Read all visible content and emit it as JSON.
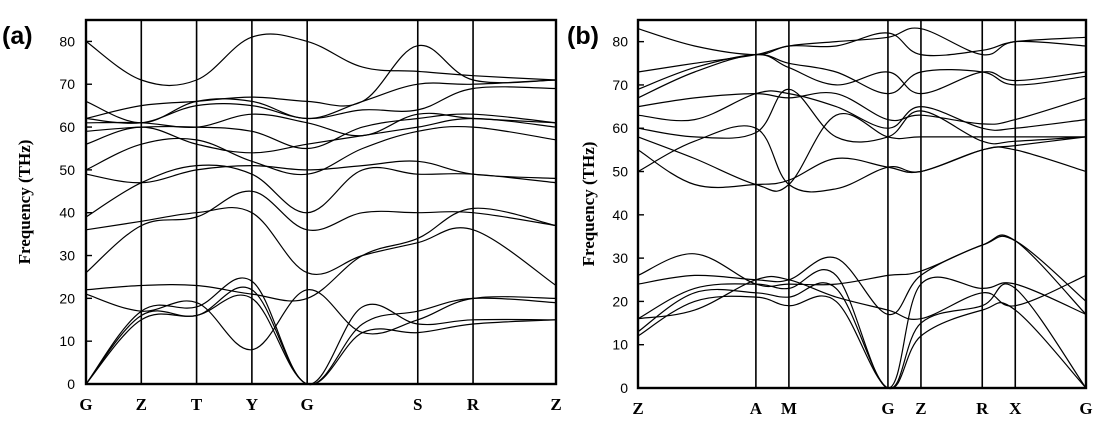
{
  "chart_data": [
    {
      "type": "line",
      "panel_label": "(a)",
      "ylabel": "Frequency (THz)",
      "ylim": [
        0,
        85
      ],
      "y_ticks": [
        "0",
        "10",
        "20",
        "30",
        "40",
        "50",
        "60",
        "70",
        "80"
      ],
      "x_labels": [
        "G",
        "Z",
        "T",
        "Y",
        "G",
        "S",
        "R",
        "Z"
      ],
      "x_positions": [
        0,
        1,
        2,
        3,
        4,
        6,
        7,
        8.5
      ],
      "reference_line": {
        "y": 0,
        "style": "dashed"
      },
      "series": [
        {
          "x": [
            0,
            1,
            2,
            3,
            4,
            5,
            6,
            7,
            8.5
          ],
          "values": [
            0,
            15,
            16,
            20,
            0,
            12,
            12,
            14,
            15
          ]
        },
        {
          "x": [
            0,
            1,
            2,
            3,
            4,
            5,
            6,
            7,
            8.5
          ],
          "values": [
            0,
            16,
            16,
            22,
            0,
            14,
            17,
            20,
            19
          ]
        },
        {
          "x": [
            0,
            1,
            2,
            3,
            4,
            5,
            6,
            7,
            8.5
          ],
          "values": [
            0,
            17,
            18,
            24,
            0,
            18,
            14,
            15,
            15
          ]
        },
        {
          "x": [
            0,
            1,
            2,
            3,
            4,
            5,
            6,
            7,
            8.5
          ],
          "values": [
            21,
            17,
            19,
            8,
            22,
            12,
            15,
            20,
            20
          ]
        },
        {
          "x": [
            0,
            1,
            2,
            3,
            4,
            5,
            6,
            7,
            8.5
          ],
          "values": [
            22,
            23,
            23,
            21,
            20,
            30,
            34,
            41,
            37
          ]
        },
        {
          "x": [
            0,
            1,
            2,
            3,
            4,
            5,
            6,
            7,
            8.5
          ],
          "values": [
            26,
            37,
            39,
            45,
            36,
            40,
            40,
            40,
            37
          ]
        },
        {
          "x": [
            0,
            1,
            2,
            3,
            4,
            5,
            6,
            7,
            8.5
          ],
          "values": [
            36,
            38,
            40,
            40,
            26,
            30,
            33,
            36,
            23
          ]
        },
        {
          "x": [
            0,
            1,
            2,
            3,
            4,
            5,
            6,
            7,
            8.5
          ],
          "values": [
            39,
            47,
            51,
            49,
            40,
            50,
            49,
            49,
            47
          ]
        },
        {
          "x": [
            0,
            1,
            2,
            3,
            4,
            5,
            6,
            7,
            8.5
          ],
          "values": [
            49,
            47,
            50,
            51,
            50,
            51,
            52,
            49,
            48
          ]
        },
        {
          "x": [
            0,
            1,
            2,
            3,
            4,
            5,
            6,
            7,
            8.5
          ],
          "values": [
            50,
            56,
            57,
            52,
            49,
            55,
            59,
            60,
            57
          ]
        },
        {
          "x": [
            0,
            1,
            2,
            3,
            4,
            5,
            6,
            7,
            8.5
          ],
          "values": [
            56,
            60,
            56,
            54,
            56,
            58,
            60,
            62,
            60
          ]
        },
        {
          "x": [
            0,
            1,
            2,
            3,
            4,
            5,
            6,
            7,
            8.5
          ],
          "values": [
            59,
            60,
            60,
            59,
            55,
            60,
            62,
            63,
            61
          ]
        },
        {
          "x": [
            0,
            1,
            2,
            3,
            4,
            5,
            6,
            7,
            8.5
          ],
          "values": [
            61,
            61,
            60,
            63,
            61,
            58,
            63,
            62,
            61
          ]
        },
        {
          "x": [
            0,
            1,
            2,
            3,
            4,
            5,
            6,
            7,
            8.5
          ],
          "values": [
            62,
            61,
            65,
            65,
            62,
            64,
            64,
            69,
            69
          ]
        },
        {
          "x": [
            0,
            1,
            2,
            3,
            4,
            5,
            6,
            7,
            8.5
          ],
          "values": [
            66,
            61,
            66,
            66,
            62,
            66,
            70,
            70,
            71
          ]
        },
        {
          "x": [
            0,
            1,
            2,
            3,
            4,
            5,
            6,
            7,
            8.5
          ],
          "values": [
            80,
            71,
            71,
            81,
            80,
            74,
            73,
            72,
            71
          ]
        },
        {
          "x": [
            0,
            1,
            2,
            3,
            4,
            5,
            6,
            7,
            8.5
          ],
          "values": [
            62,
            65,
            66,
            67,
            66,
            66,
            79,
            71,
            71
          ]
        }
      ]
    },
    {
      "type": "line",
      "panel_label": "(b)",
      "ylabel": "Frequency (THz)",
      "ylim": [
        0,
        85
      ],
      "y_ticks": [
        "0",
        "10",
        "20",
        "30",
        "40",
        "50",
        "60",
        "70",
        "80"
      ],
      "x_labels": [
        "Z",
        "A",
        "M",
        "G",
        "Z",
        "R",
        "X",
        "G"
      ],
      "x_positions": [
        0,
        2.5,
        3.2,
        5.3,
        6.0,
        7.3,
        8.0,
        9.5
      ],
      "reference_line": {
        "y": 0,
        "style": "dashed"
      },
      "series": [
        {
          "x": [
            0,
            1.2,
            2.5,
            3.2,
            4.2,
            5.3,
            6.0,
            7.3,
            8.0,
            9.5
          ],
          "values": [
            12,
            20,
            21,
            19,
            20,
            0,
            12,
            18,
            18,
            0
          ]
        },
        {
          "x": [
            0,
            1.2,
            2.5,
            3.2,
            4.2,
            5.3,
            6.0,
            7.3,
            8.0,
            9.5
          ],
          "values": [
            13,
            22,
            22,
            21,
            23,
            0,
            15,
            19,
            23,
            0
          ]
        },
        {
          "x": [
            0,
            1.2,
            2.5,
            3.2,
            4.2,
            5.3,
            6.0,
            7.3,
            8.0,
            9.5
          ],
          "values": [
            16,
            23,
            24,
            23,
            26,
            0,
            24,
            23,
            24,
            17
          ]
        },
        {
          "x": [
            0,
            1.2,
            2.5,
            3.2,
            4.2,
            5.3,
            6.0,
            7.3,
            8.0,
            9.5
          ],
          "values": [
            16,
            18,
            25,
            25,
            21,
            18,
            16,
            22,
            19,
            26
          ]
        },
        {
          "x": [
            0,
            1.2,
            2.5,
            3.2,
            4.2,
            5.3,
            6.0,
            7.3,
            8.0,
            9.5
          ],
          "values": [
            24,
            26,
            25,
            25,
            30,
            17,
            26,
            33,
            34,
            17
          ]
        },
        {
          "x": [
            0,
            1.2,
            2.5,
            3.2,
            4.2,
            5.3,
            6.0,
            7.3,
            8.0,
            9.5
          ],
          "values": [
            26,
            31,
            24,
            24,
            24,
            26,
            27,
            33,
            34,
            20
          ]
        },
        {
          "x": [
            0,
            1.2,
            2.5,
            3.2,
            4.2,
            5.3,
            6.0,
            7.3,
            8.0,
            9.5
          ],
          "values": [
            50,
            57,
            60,
            47,
            46,
            51,
            50,
            55,
            55,
            50
          ]
        },
        {
          "x": [
            0,
            1.2,
            2.5,
            3.2,
            4.2,
            5.3,
            6.0,
            7.3,
            8.0,
            9.5
          ],
          "values": [
            55,
            47,
            47,
            48,
            53,
            51,
            50,
            55,
            56,
            58
          ]
        },
        {
          "x": [
            0,
            1.2,
            2.5,
            3.2,
            4.2,
            5.3,
            6.0,
            7.3,
            8.0,
            9.5
          ],
          "values": [
            58,
            53,
            47,
            47,
            63,
            58,
            58,
            58,
            58,
            58
          ]
        },
        {
          "x": [
            0,
            1.2,
            2.5,
            3.2,
            4.2,
            5.3,
            6.0,
            7.3,
            8.0,
            9.5
          ],
          "values": [
            60,
            58,
            59,
            69,
            58,
            58,
            64,
            57,
            57,
            58
          ]
        },
        {
          "x": [
            0,
            1.2,
            2.5,
            3.2,
            4.2,
            5.3,
            6.0,
            7.3,
            8.0,
            9.5
          ],
          "values": [
            63,
            62,
            68,
            68,
            65,
            60,
            65,
            60,
            60,
            62
          ]
        },
        {
          "x": [
            0,
            1.2,
            2.5,
            3.2,
            4.2,
            5.3,
            6.0,
            7.3,
            8.0,
            9.5
          ],
          "values": [
            65,
            67,
            68,
            67,
            68,
            62,
            63,
            61,
            62,
            67
          ]
        },
        {
          "x": [
            0,
            1.2,
            2.5,
            3.2,
            4.2,
            5.3,
            6.0,
            7.3,
            8.0,
            9.5
          ],
          "values": [
            67,
            73,
            77,
            74,
            70,
            73,
            68,
            73,
            71,
            73
          ]
        },
        {
          "x": [
            0,
            1.2,
            2.5,
            3.2,
            4.2,
            5.3,
            6.0,
            7.3,
            8.0,
            9.5
          ],
          "values": [
            69,
            74,
            77,
            75,
            73,
            68,
            73,
            73,
            70,
            72
          ]
        },
        {
          "x": [
            0,
            1.2,
            2.5,
            3.2,
            4.2,
            5.3,
            6.0,
            7.3,
            8.0,
            9.5
          ],
          "values": [
            73,
            75,
            77,
            79,
            80,
            81,
            83,
            77,
            80,
            79
          ]
        },
        {
          "x": [
            0,
            1.2,
            2.5,
            3.2,
            4.2,
            5.3,
            6.0,
            7.3,
            8.0,
            9.5
          ],
          "values": [
            83,
            79,
            77,
            79,
            79,
            82,
            77,
            78,
            80,
            81
          ]
        }
      ]
    }
  ]
}
